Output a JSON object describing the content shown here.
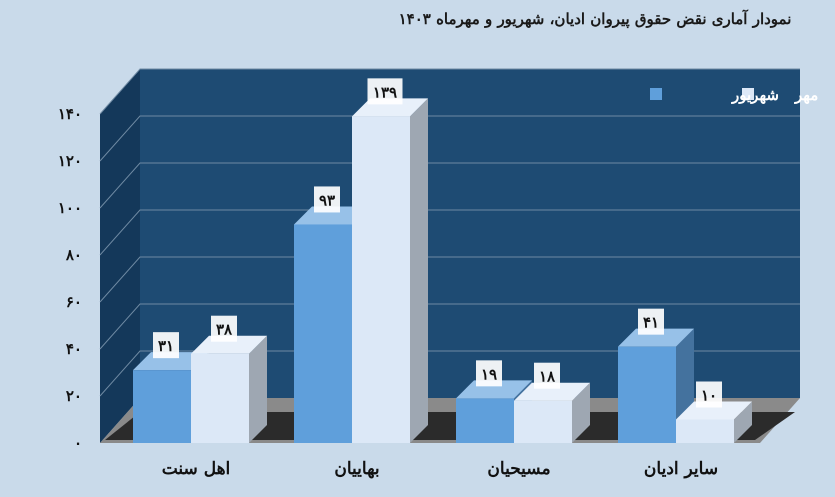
{
  "chart_data": {
    "type": "bar",
    "title": "نمودار آماری نقض حقوق پیروان ادیان، شهریور و مهرماه ۱۴۰۳",
    "categories": [
      "اهل سنت",
      "بهاییان",
      "مسیحیان",
      "سایر ادیان"
    ],
    "series": [
      {
        "name": "شهریور",
        "values": [
          31,
          93,
          19,
          41
        ],
        "labels": [
          "۳۱",
          "۹۳",
          "۱۹",
          "۴۱"
        ]
      },
      {
        "name": "مهر",
        "values": [
          38,
          139,
          18,
          10
        ],
        "labels": [
          "۳۸",
          "۱۳۹",
          "۱۸",
          "۱۰"
        ]
      }
    ],
    "y_ticks": [
      {
        "value": 0,
        "label": "۰"
      },
      {
        "value": 20,
        "label": "۲۰"
      },
      {
        "value": 40,
        "label": "۴۰"
      },
      {
        "value": 60,
        "label": "۶۰"
      },
      {
        "value": 80,
        "label": "۸۰"
      },
      {
        "value": 100,
        "label": "۱۰۰"
      },
      {
        "value": 120,
        "label": "۱۲۰"
      },
      {
        "value": 140,
        "label": "۱۴۰"
      }
    ],
    "ylim": [
      0,
      140
    ],
    "grid": true,
    "legend": "top-right",
    "colors": {
      "series_1": "#5f9fdb",
      "series_2": "#dce8f7",
      "wall": "#1e4b73",
      "side_wall": "#14385a",
      "floor": "#2b2b2b",
      "background": "#c9daea"
    }
  }
}
